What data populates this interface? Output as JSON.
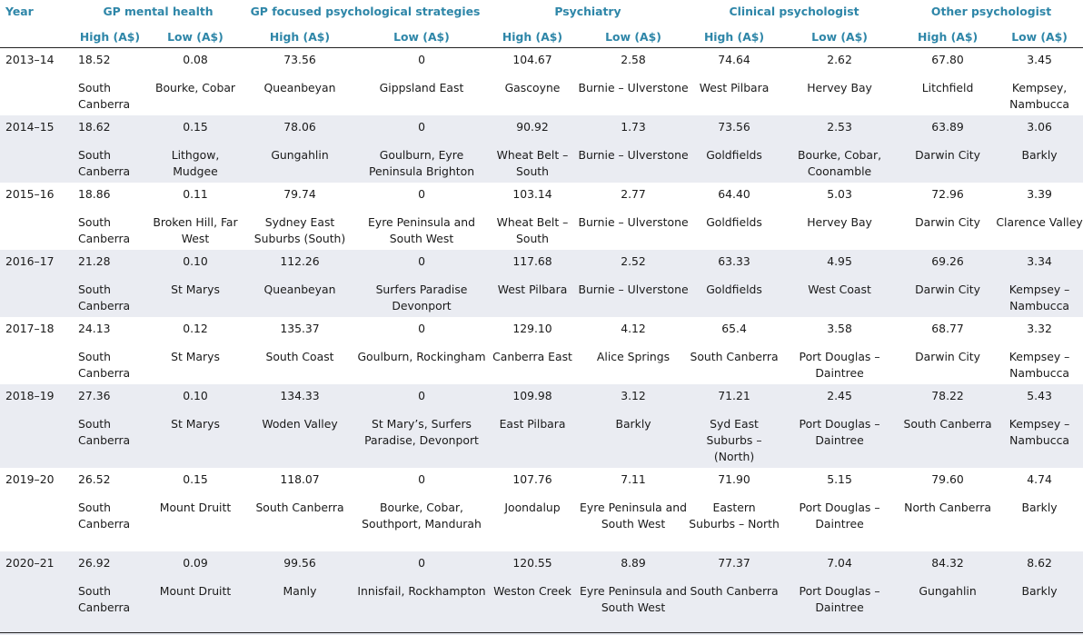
{
  "header": {
    "year": "Year",
    "groups": [
      "GP mental health",
      "GP focused psychological strategies",
      "Psychiatry",
      "Clinical psychologist",
      "Other psychologist"
    ],
    "high": "High (A$)",
    "low": "Low (A$)"
  },
  "rows": [
    {
      "year": "2013–14",
      "v": [
        "18.52",
        "0.08",
        "73.56",
        "0",
        "104.67",
        "2.58",
        "74.64",
        "2.62",
        "67.80",
        "3.45"
      ],
      "l": [
        "South Canberra",
        "Bourke, Cobar",
        "Queanbeyan",
        "Gippsland East",
        "Gascoyne",
        "Burnie – Ulverstone",
        "West Pilbara",
        "Hervey Bay",
        "Litchfield",
        "Kempsey, Nambucca"
      ]
    },
    {
      "year": "2014–15",
      "v": [
        "18.62",
        "0.15",
        "78.06",
        "0",
        "90.92",
        "1.73",
        "73.56",
        "2.53",
        "63.89",
        "3.06"
      ],
      "l": [
        "South Canberra",
        "Lithgow, Mudgee",
        "Gungahlin",
        "Goulburn, Eyre Peninsula Brighton",
        "Wheat Belt – South",
        "Burnie – Ulverstone",
        "Goldfields",
        "Bourke, Cobar, Coonamble",
        "Darwin City",
        "Barkly"
      ]
    },
    {
      "year": "2015–16",
      "v": [
        "18.86",
        "0.11",
        "79.74",
        "0",
        "103.14",
        "2.77",
        "64.40",
        "5.03",
        "72.96",
        "3.39"
      ],
      "l": [
        "South Canberra",
        "Broken Hill, Far West",
        "Sydney East Suburbs (South)",
        "Eyre Peninsula and South West",
        "Wheat Belt – South",
        "Burnie – Ulverstone",
        "Goldfields",
        "Hervey Bay",
        "Darwin City",
        "Clarence Valley"
      ]
    },
    {
      "year": "2016–17",
      "v": [
        "21.28",
        "0.10",
        "112.26",
        "0",
        "117.68",
        "2.52",
        "63.33",
        "4.95",
        "69.26",
        "3.34"
      ],
      "l": [
        "South Canberra",
        "St Marys",
        "Queanbeyan",
        "Surfers Paradise Devonport",
        "West Pilbara",
        "Burnie – Ulverstone",
        "Goldfields",
        "West Coast",
        "Darwin City",
        "Kempsey – Nambucca"
      ]
    },
    {
      "year": "2017–18",
      "v": [
        "24.13",
        "0.12",
        "135.37",
        "0",
        "129.10",
        "4.12",
        "65.4",
        "3.58",
        "68.77",
        "3.32"
      ],
      "l": [
        "South Canberra",
        "St Marys",
        "South Coast",
        "Goulburn, Rockingham",
        "Canberra East",
        "Alice Springs",
        "South Canberra",
        "Port Douglas – Daintree",
        "Darwin City",
        "Kempsey – Nambucca"
      ]
    },
    {
      "year": "2018–19",
      "v": [
        "27.36",
        "0.10",
        "134.33",
        "0",
        "109.98",
        "3.12",
        "71.21",
        "2.45",
        "78.22",
        "5.43"
      ],
      "l": [
        "South Canberra",
        "St Marys",
        "Woden Valley",
        "St Mary’s, Surfers Paradise, Devonport",
        "East Pilbara",
        "Barkly",
        "Syd East Suburbs – (North)",
        "Port Douglas – Daintree",
        "South Canberra",
        "Kempsey – Nambucca"
      ]
    },
    {
      "year": "2019–20",
      "v": [
        "26.52",
        "0.15",
        "118.07",
        "0",
        "107.76",
        "7.11",
        "71.90",
        "5.15",
        "79.60",
        "4.74"
      ],
      "l": [
        "South Canberra",
        "Mount Druitt",
        "South Canberra",
        "Bourke, Cobar, Southport, Mandurah",
        "Joondalup",
        "Eyre Peninsula and South West",
        "Eastern Suburbs – North",
        "Port Douglas – Daintree",
        "North Canberra",
        "Barkly"
      ]
    },
    {
      "year": "2020–21",
      "v": [
        "26.92",
        "0.09",
        "99.56",
        "0",
        "120.55",
        "8.89",
        "77.37",
        "7.04",
        "84.32",
        "8.62"
      ],
      "l": [
        "South Canberra",
        "Mount Druitt",
        "Manly",
        "Innisfail, Rockhampton",
        "Weston Creek",
        "Eyre Peninsula and South West",
        "South Canberra",
        "Port Douglas – Daintree",
        "Gungahlin",
        "Barkly"
      ]
    }
  ]
}
